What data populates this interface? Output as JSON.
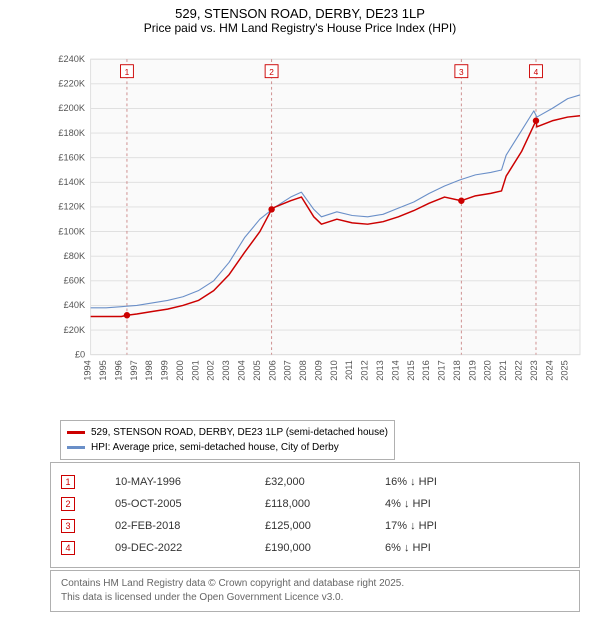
{
  "title": "529, STENSON ROAD, DERBY, DE23 1LP",
  "subtitle": "Price paid vs. HM Land Registry's House Price Index (HPI)",
  "chart": {
    "type": "line",
    "background_color": "#fafafa",
    "grid_color": "#dddddd",
    "xlim": [
      1994,
      2025.8
    ],
    "ylim": [
      0,
      240
    ],
    "ytick_step": 20,
    "yticks": [
      "£0",
      "£20K",
      "£40K",
      "£60K",
      "£80K",
      "£100K",
      "£120K",
      "£140K",
      "£160K",
      "£180K",
      "£200K",
      "£220K",
      "£240K"
    ],
    "xticks": [
      1994,
      1995,
      1996,
      1997,
      1998,
      1999,
      2000,
      2001,
      2002,
      2003,
      2004,
      2005,
      2006,
      2007,
      2008,
      2009,
      2010,
      2011,
      2012,
      2013,
      2014,
      2015,
      2016,
      2017,
      2018,
      2019,
      2020,
      2021,
      2022,
      2023,
      2024,
      2025
    ],
    "series": [
      {
        "name": "hpi",
        "color": "#6a8fc8",
        "width": 1.2,
        "label": "HPI: Average price, semi-detached house, City of Derby",
        "data": [
          [
            1994,
            38
          ],
          [
            1995,
            38
          ],
          [
            1996,
            39
          ],
          [
            1997,
            40
          ],
          [
            1998,
            42
          ],
          [
            1999,
            44
          ],
          [
            2000,
            47
          ],
          [
            2001,
            52
          ],
          [
            2002,
            60
          ],
          [
            2003,
            75
          ],
          [
            2004,
            95
          ],
          [
            2005,
            110
          ],
          [
            2006,
            120
          ],
          [
            2007,
            128
          ],
          [
            2007.7,
            132
          ],
          [
            2008.5,
            118
          ],
          [
            2009,
            112
          ],
          [
            2010,
            116
          ],
          [
            2011,
            113
          ],
          [
            2012,
            112
          ],
          [
            2013,
            114
          ],
          [
            2014,
            119
          ],
          [
            2015,
            124
          ],
          [
            2016,
            131
          ],
          [
            2017,
            137
          ],
          [
            2018,
            142
          ],
          [
            2019,
            146
          ],
          [
            2020,
            148
          ],
          [
            2020.7,
            150
          ],
          [
            2021,
            162
          ],
          [
            2022,
            182
          ],
          [
            2022.8,
            198
          ],
          [
            2023,
            193
          ],
          [
            2024,
            200
          ],
          [
            2025,
            208
          ],
          [
            2025.8,
            211
          ]
        ]
      },
      {
        "name": "price",
        "color": "#cc0000",
        "width": 1.6,
        "label": "529, STENSON ROAD, DERBY, DE23 1LP (semi-detached house)",
        "data": [
          [
            1994,
            31
          ],
          [
            1995,
            31
          ],
          [
            1996,
            31
          ],
          [
            1996.36,
            32
          ],
          [
            1997,
            33
          ],
          [
            1998,
            35
          ],
          [
            1999,
            37
          ],
          [
            2000,
            40
          ],
          [
            2001,
            44
          ],
          [
            2002,
            52
          ],
          [
            2003,
            65
          ],
          [
            2004,
            83
          ],
          [
            2005,
            100
          ],
          [
            2005.76,
            118
          ],
          [
            2006,
            120
          ],
          [
            2007,
            125
          ],
          [
            2007.7,
            128
          ],
          [
            2008.5,
            112
          ],
          [
            2009,
            106
          ],
          [
            2010,
            110
          ],
          [
            2011,
            107
          ],
          [
            2012,
            106
          ],
          [
            2013,
            108
          ],
          [
            2014,
            112
          ],
          [
            2015,
            117
          ],
          [
            2016,
            123
          ],
          [
            2017,
            128
          ],
          [
            2018.09,
            125
          ],
          [
            2019,
            129
          ],
          [
            2020,
            131
          ],
          [
            2020.7,
            133
          ],
          [
            2021,
            145
          ],
          [
            2022,
            165
          ],
          [
            2022.94,
            190
          ],
          [
            2023,
            185
          ],
          [
            2024,
            190
          ],
          [
            2025,
            193
          ],
          [
            2025.8,
            194
          ]
        ]
      }
    ],
    "event_markers": [
      {
        "n": "1",
        "x": 1996.36,
        "y": 32
      },
      {
        "n": "2",
        "x": 2005.76,
        "y": 118
      },
      {
        "n": "3",
        "x": 2018.09,
        "y": 125
      },
      {
        "n": "4",
        "x": 2022.94,
        "y": 190
      }
    ],
    "marker_color": "#cc0000",
    "marker_bg": "#ffffff",
    "marker_dash_color": "#cc8888",
    "tick_fontsize": 10,
    "tick_color": "#555555"
  },
  "legend_items": [
    {
      "color": "#cc0000",
      "label": "529, STENSON ROAD, DERBY, DE23 1LP (semi-detached house)"
    },
    {
      "color": "#6a8fc8",
      "label": "HPI: Average price, semi-detached house, City of Derby"
    }
  ],
  "events": [
    {
      "n": "1",
      "date": "10-MAY-1996",
      "price": "£32,000",
      "diff": "16% ↓ HPI"
    },
    {
      "n": "2",
      "date": "05-OCT-2005",
      "price": "£118,000",
      "diff": "4% ↓ HPI"
    },
    {
      "n": "3",
      "date": "02-FEB-2018",
      "price": "£125,000",
      "diff": "17% ↓ HPI"
    },
    {
      "n": "4",
      "date": "09-DEC-2022",
      "price": "£190,000",
      "diff": "6% ↓ HPI"
    }
  ],
  "footer_line1": "Contains HM Land Registry data © Crown copyright and database right 2025.",
  "footer_line2": "This data is licensed under the Open Government Licence v3.0."
}
